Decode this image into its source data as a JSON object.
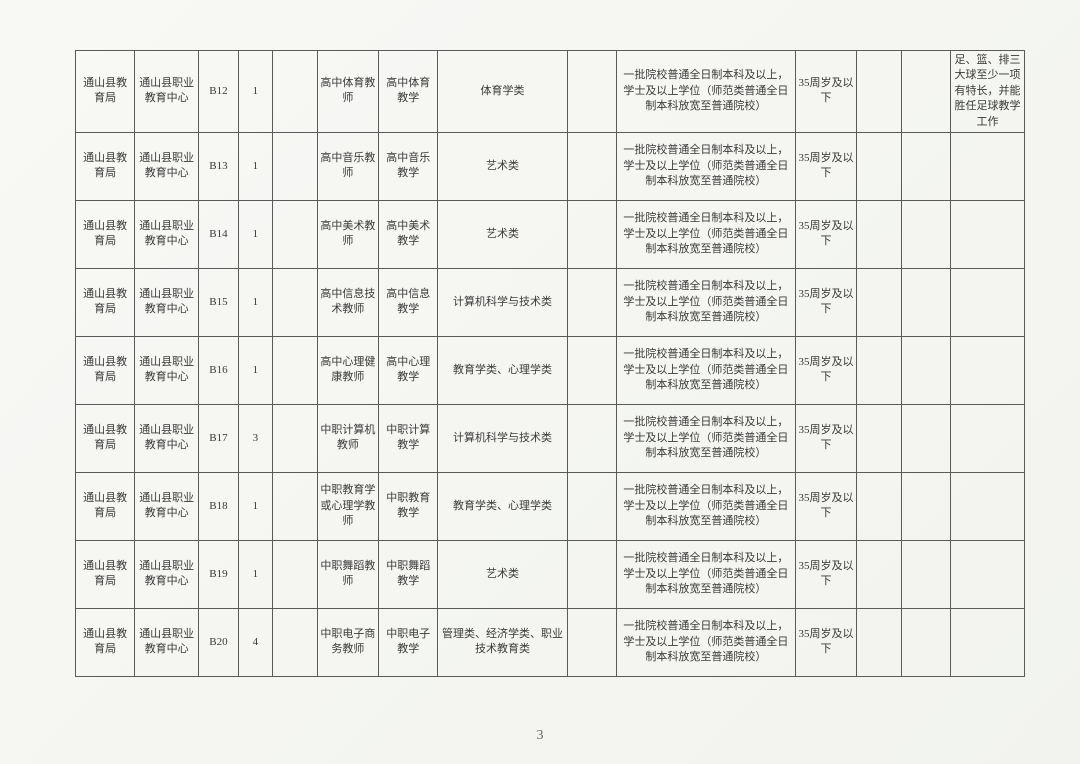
{
  "page_number": "3",
  "column_widths": [
    "48px",
    "52px",
    "32px",
    "28px",
    "36px",
    "50px",
    "48px",
    "105px",
    "40px",
    "145px",
    "50px",
    "36px",
    "40px",
    "60px"
  ],
  "border_color": "#5a5a5a",
  "text_color": "#3a3a3a",
  "background_color": "#f6f6f3",
  "font_size": 11,
  "rows": [
    {
      "c0": "通山县教育局",
      "c1": "通山县职业教育中心",
      "c2": "B12",
      "c3": "1",
      "c4": "",
      "c5": "高中体育教师",
      "c6": "高中体育教学",
      "c7": "体育学类",
      "c8": "",
      "c9": "一批院校普通全日制本科及以上，学士及以上学位（师范类普通全日制本科放宽至普通院校）",
      "c10": "35周岁及以下",
      "c11": "",
      "c12": "",
      "c13": "足、篮、排三大球至少一项有特长，并能胜任足球教学工作"
    },
    {
      "c0": "通山县教育局",
      "c1": "通山县职业教育中心",
      "c2": "B13",
      "c3": "1",
      "c4": "",
      "c5": "高中音乐教师",
      "c6": "高中音乐教学",
      "c7": "艺术类",
      "c8": "",
      "c9": "一批院校普通全日制本科及以上，学士及以上学位（师范类普通全日制本科放宽至普通院校）",
      "c10": "35周岁及以下",
      "c11": "",
      "c12": "",
      "c13": ""
    },
    {
      "c0": "通山县教育局",
      "c1": "通山县职业教育中心",
      "c2": "B14",
      "c3": "1",
      "c4": "",
      "c5": "高中美术教师",
      "c6": "高中美术教学",
      "c7": "艺术类",
      "c8": "",
      "c9": "一批院校普通全日制本科及以上，学士及以上学位（师范类普通全日制本科放宽至普通院校）",
      "c10": "35周岁及以下",
      "c11": "",
      "c12": "",
      "c13": ""
    },
    {
      "c0": "通山县教育局",
      "c1": "通山县职业教育中心",
      "c2": "B15",
      "c3": "1",
      "c4": "",
      "c5": "高中信息技术教师",
      "c6": "高中信息教学",
      "c7": "计算机科学与技术类",
      "c8": "",
      "c9": "一批院校普通全日制本科及以上，学士及以上学位（师范类普通全日制本科放宽至普通院校）",
      "c10": "35周岁及以下",
      "c11": "",
      "c12": "",
      "c13": ""
    },
    {
      "c0": "通山县教育局",
      "c1": "通山县职业教育中心",
      "c2": "B16",
      "c3": "1",
      "c4": "",
      "c5": "高中心理健康教师",
      "c6": "高中心理教学",
      "c7": "教育学类、心理学类",
      "c8": "",
      "c9": "一批院校普通全日制本科及以上，学士及以上学位（师范类普通全日制本科放宽至普通院校）",
      "c10": "35周岁及以下",
      "c11": "",
      "c12": "",
      "c13": ""
    },
    {
      "c0": "通山县教育局",
      "c1": "通山县职业教育中心",
      "c2": "B17",
      "c3": "3",
      "c4": "",
      "c5": "中职计算机教师",
      "c6": "中职计算教学",
      "c7": "计算机科学与技术类",
      "c8": "",
      "c9": "一批院校普通全日制本科及以上，学士及以上学位（师范类普通全日制本科放宽至普通院校）",
      "c10": "35周岁及以下",
      "c11": "",
      "c12": "",
      "c13": ""
    },
    {
      "c0": "通山县教育局",
      "c1": "通山县职业教育中心",
      "c2": "B18",
      "c3": "1",
      "c4": "",
      "c5": "中职教育学或心理学教师",
      "c6": "中职教育教学",
      "c7": "教育学类、心理学类",
      "c8": "",
      "c9": "一批院校普通全日制本科及以上，学士及以上学位（师范类普通全日制本科放宽至普通院校）",
      "c10": "35周岁及以下",
      "c11": "",
      "c12": "",
      "c13": ""
    },
    {
      "c0": "通山县教育局",
      "c1": "通山县职业教育中心",
      "c2": "B19",
      "c3": "1",
      "c4": "",
      "c5": "中职舞蹈教师",
      "c6": "中职舞蹈教学",
      "c7": "艺术类",
      "c8": "",
      "c9": "一批院校普通全日制本科及以上，学士及以上学位（师范类普通全日制本科放宽至普通院校）",
      "c10": "35周岁及以下",
      "c11": "",
      "c12": "",
      "c13": ""
    },
    {
      "c0": "通山县教育局",
      "c1": "通山县职业教育中心",
      "c2": "B20",
      "c3": "4",
      "c4": "",
      "c5": "中职电子商务教师",
      "c6": "中职电子教学",
      "c7": "管理类、经济学类、职业技术教育类",
      "c8": "",
      "c9": "一批院校普通全日制本科及以上，学士及以上学位（师范类普通全日制本科放宽至普通院校）",
      "c10": "35周岁及以下",
      "c11": "",
      "c12": "",
      "c13": ""
    }
  ]
}
